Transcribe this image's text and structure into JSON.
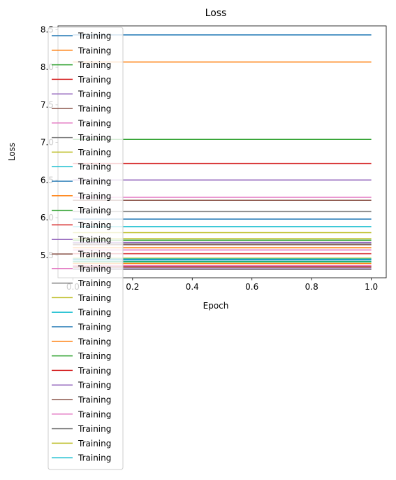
{
  "chart_data": {
    "type": "line",
    "title": "Loss",
    "xlabel": "Epoch",
    "ylabel": "Loss",
    "xlim": [
      -0.05,
      1.05
    ],
    "ylim": [
      5.2,
      8.55
    ],
    "xticks": [
      0.0,
      0.2,
      0.4,
      0.6,
      0.8,
      1.0
    ],
    "xtick_labels": [
      "0.0",
      "0.2",
      "0.4",
      "0.6",
      "0.8",
      "1.0"
    ],
    "yticks": [
      5.5,
      6.0,
      6.5,
      7.0,
      7.5,
      8.0,
      8.5
    ],
    "ytick_labels": [
      "5.5",
      "6.0",
      "6.5",
      "7.0",
      "7.5",
      "8.0",
      "8.5"
    ],
    "grid": false,
    "legend_position": "top-left",
    "x": [
      0,
      1
    ],
    "series": [
      {
        "name": "Training",
        "color": "#1f77b4",
        "values": [
          8.43,
          8.43
        ]
      },
      {
        "name": "Training",
        "color": "#ff7f0e",
        "values": [
          8.07,
          8.07
        ]
      },
      {
        "name": "Training",
        "color": "#2ca02c",
        "values": [
          7.04,
          7.04
        ]
      },
      {
        "name": "Training",
        "color": "#d62728",
        "values": [
          6.72,
          6.72
        ]
      },
      {
        "name": "Training",
        "color": "#9467bd",
        "values": [
          6.5,
          6.5
        ]
      },
      {
        "name": "Training",
        "color": "#8c564b",
        "values": [
          6.23,
          6.23
        ]
      },
      {
        "name": "Training",
        "color": "#e377c2",
        "values": [
          6.27,
          6.27
        ]
      },
      {
        "name": "Training",
        "color": "#7f7f7f",
        "values": [
          6.08,
          6.08
        ]
      },
      {
        "name": "Training",
        "color": "#bcbd22",
        "values": [
          5.8,
          5.8
        ]
      },
      {
        "name": "Training",
        "color": "#17becf",
        "values": [
          5.88,
          5.88
        ]
      },
      {
        "name": "Training",
        "color": "#1f77b4",
        "values": [
          5.98,
          5.98
        ]
      },
      {
        "name": "Training",
        "color": "#ff7f0e",
        "values": [
          5.6,
          5.6
        ]
      },
      {
        "name": "Training",
        "color": "#2ca02c",
        "values": [
          5.7,
          5.7
        ]
      },
      {
        "name": "Training",
        "color": "#d62728",
        "values": [
          5.52,
          5.52
        ]
      },
      {
        "name": "Training",
        "color": "#9467bd",
        "values": [
          5.67,
          5.67
        ]
      },
      {
        "name": "Training",
        "color": "#8c564b",
        "values": [
          5.64,
          5.64
        ]
      },
      {
        "name": "Training",
        "color": "#e377c2",
        "values": [
          5.57,
          5.57
        ]
      },
      {
        "name": "Training",
        "color": "#7f7f7f",
        "values": [
          5.65,
          5.65
        ]
      },
      {
        "name": "Training",
        "color": "#bcbd22",
        "values": [
          5.72,
          5.72
        ]
      },
      {
        "name": "Training",
        "color": "#17becf",
        "values": [
          5.42,
          5.42
        ]
      },
      {
        "name": "Training",
        "color": "#1f77b4",
        "values": [
          5.44,
          5.44
        ]
      },
      {
        "name": "Training",
        "color": "#ff7f0e",
        "values": [
          5.39,
          5.39
        ]
      },
      {
        "name": "Training",
        "color": "#2ca02c",
        "values": [
          5.41,
          5.41
        ]
      },
      {
        "name": "Training",
        "color": "#d62728",
        "values": [
          5.35,
          5.35
        ]
      },
      {
        "name": "Training",
        "color": "#9467bd",
        "values": [
          5.32,
          5.32
        ]
      },
      {
        "name": "Training",
        "color": "#8c564b",
        "values": [
          5.34,
          5.34
        ]
      },
      {
        "name": "Training",
        "color": "#e377c2",
        "values": [
          5.36,
          5.36
        ]
      },
      {
        "name": "Training",
        "color": "#7f7f7f",
        "values": [
          5.31,
          5.31
        ]
      },
      {
        "name": "Training",
        "color": "#bcbd22",
        "values": [
          5.46,
          5.46
        ]
      },
      {
        "name": "Training",
        "color": "#17becf",
        "values": [
          5.45,
          5.45
        ]
      }
    ]
  }
}
